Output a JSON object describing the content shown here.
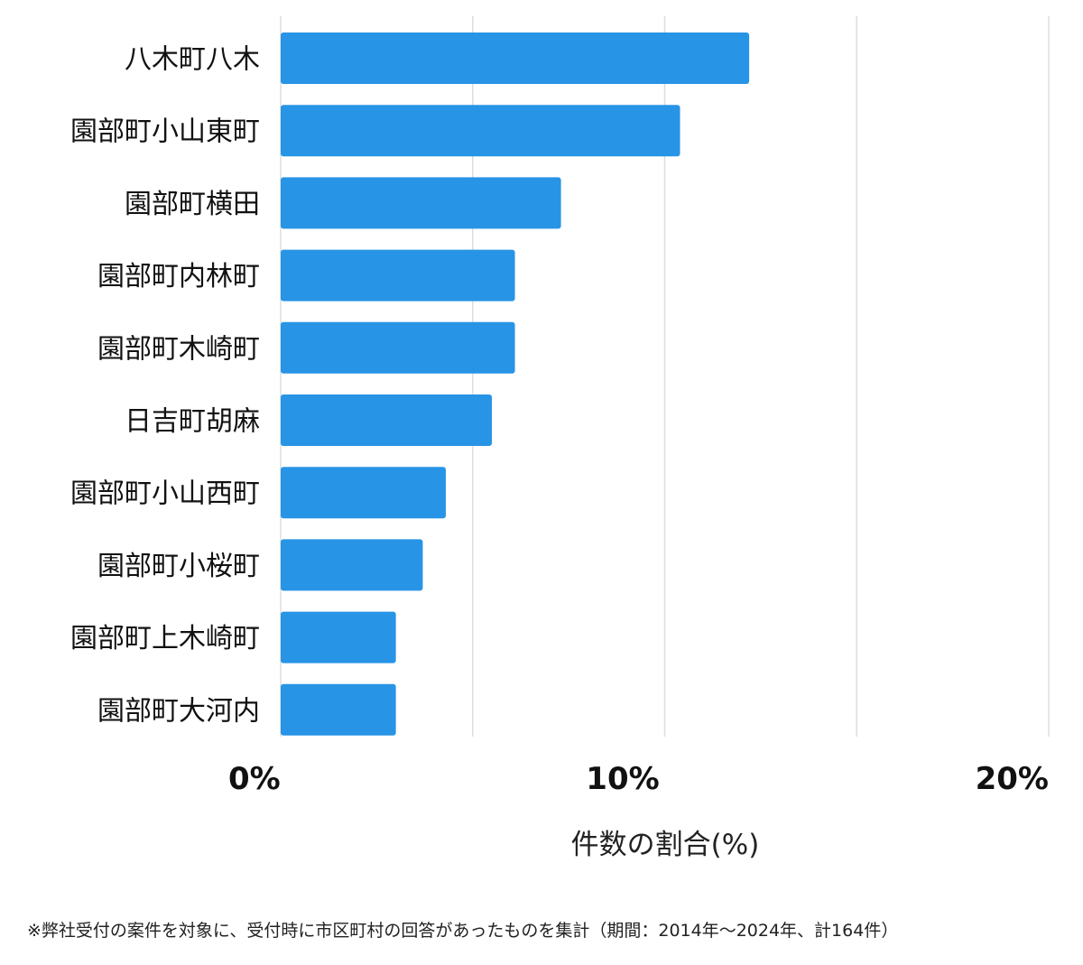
{
  "chart_data": {
    "type": "bar",
    "orientation": "horizontal",
    "categories": [
      "八木町八木",
      "園部町小山東町",
      "園部町横田",
      "園部町内林町",
      "園部町木崎町",
      "日吉町胡麻",
      "園部町小山西町",
      "園部町小桜町",
      "園部町上木崎町",
      "園部町大河内"
    ],
    "values": [
      12.2,
      10.4,
      7.3,
      6.1,
      6.1,
      5.5,
      4.3,
      3.7,
      3.0,
      3.0
    ],
    "xlim": [
      0,
      20
    ],
    "x_ticks": [
      {
        "value": 0,
        "label": "0%"
      },
      {
        "value": 10,
        "label": "10%"
      },
      {
        "value": 20,
        "label": "20%"
      }
    ],
    "gridlines_at": [
      0,
      5,
      10,
      15,
      20
    ],
    "xlabel": "件数の割合(%)",
    "ylabel": "",
    "title": "",
    "grid": true,
    "legend": "none",
    "bar_color": "#2894e5",
    "grid_color": "#dddddd"
  },
  "footnote": "※弊社受付の案件を対象に、受付時に市区町村の回答があったものを集計（期間：2014年～2024年、計164件）"
}
